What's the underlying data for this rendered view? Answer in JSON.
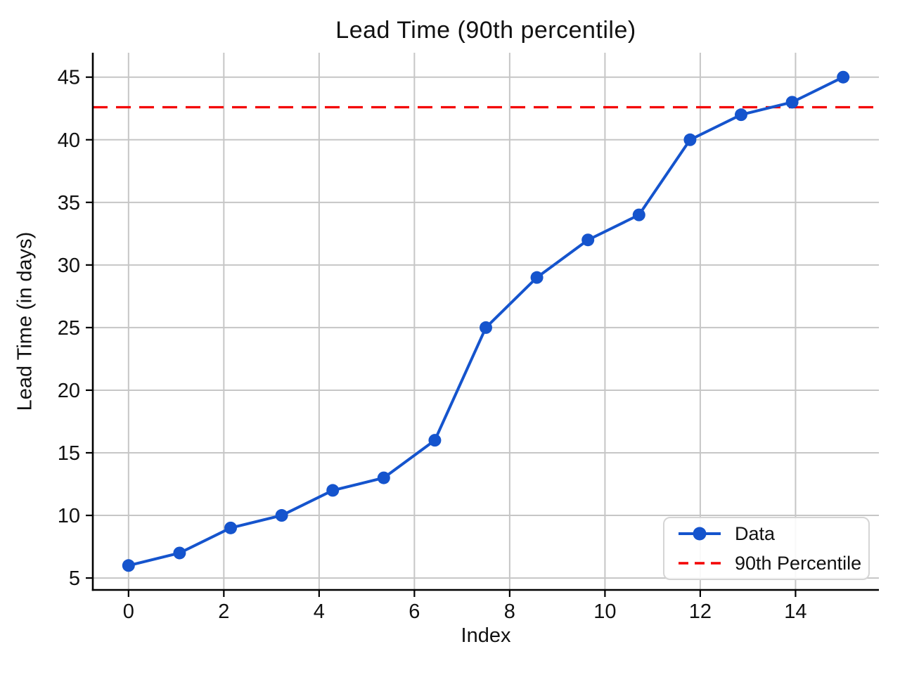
{
  "figure": {
    "title": "Lead Time (90th percentile)",
    "xlabel": "Index",
    "ylabel": "Lead Time (in days)"
  },
  "legend": {
    "items": [
      {
        "label": "Data",
        "style": "line-with-marker"
      },
      {
        "label": "90th Percentile",
        "style": "dashed-line"
      }
    ],
    "position": "lower-right"
  },
  "colors": {
    "series_blue": "#1554cd",
    "percentile_red": "#f30000",
    "grid_gray": "#c6c6c6",
    "text": "#111111"
  },
  "chart_data": {
    "type": "line",
    "title": "Lead Time (90th percentile)",
    "xlabel": "Index",
    "ylabel": "Lead Time (in days)",
    "x": [
      0,
      1.071,
      2.143,
      3.214,
      4.286,
      5.357,
      6.429,
      7.5,
      8.571,
      9.643,
      10.714,
      11.786,
      12.857,
      13.929,
      15
    ],
    "series": [
      {
        "name": "Data",
        "values": [
          6,
          7,
          9,
          10,
          12,
          13,
          16,
          25,
          29,
          32,
          34,
          40,
          42,
          43,
          45
        ]
      }
    ],
    "percentile_line": {
      "name": "90th Percentile",
      "value": 42.6
    },
    "xticks": [
      0,
      2,
      4,
      6,
      8,
      10,
      12,
      14
    ],
    "yticks": [
      5,
      10,
      15,
      20,
      25,
      30,
      35,
      40,
      45
    ],
    "xlim": [
      -0.75,
      15.75
    ],
    "ylim": [
      4.05,
      46.95
    ],
    "grid": true,
    "legend_position": "lower right"
  }
}
